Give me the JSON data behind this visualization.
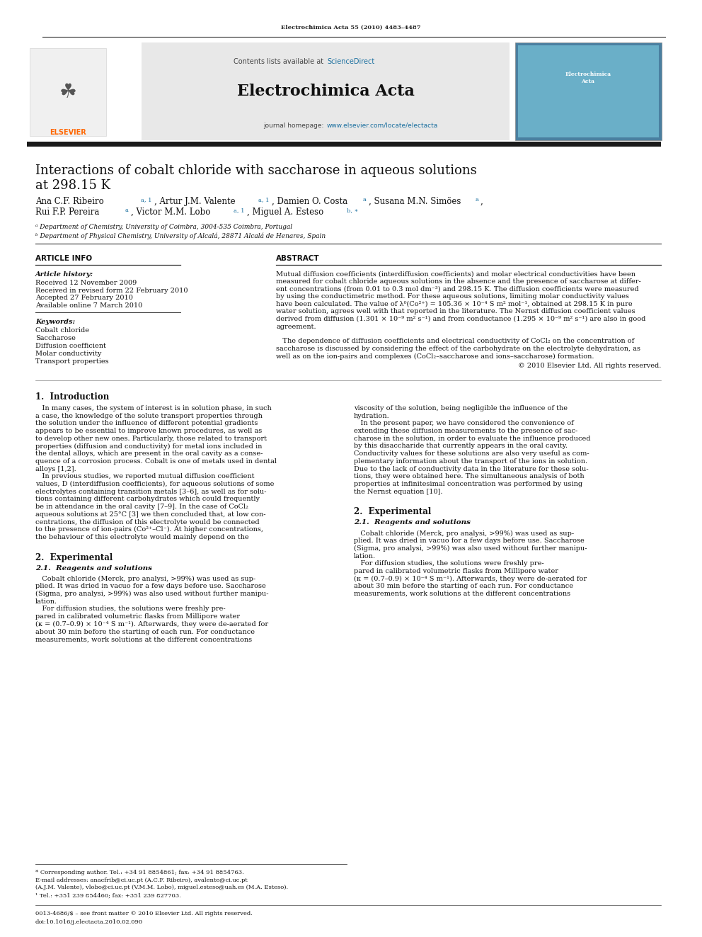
{
  "page_width": 9.92,
  "page_height": 13.23,
  "background": "#ffffff",
  "top_journal_ref": "Electrochimica Acta 55 (2010) 4483–4487",
  "journal_name": "Electrochimica Acta",
  "contents_text": "Contents lists available at ",
  "sciencedirect_text": "ScienceDirect",
  "journal_homepage_plain": "journal homepage: ",
  "journal_homepage_url": "www.elsevier.com/locate/electacta",
  "sciencedirect_color": "#1a6f9f",
  "homepage_color": "#1a6f9f",
  "elsevier_color": "#ff6600",
  "article_title_line1": "Interactions of cobalt chloride with saccharose in aqueous solutions",
  "article_title_line2": "at 298.15 K",
  "affil_a": "ᵃ Department of Chemistry, University of Coimbra, 3004-535 Coimbra, Portugal",
  "affil_b": "ᵇ Department of Physical Chemistry, University of Alcalá, 28871 Alcalá de Henares, Spain",
  "article_info_title": "ARTICLE INFO",
  "abstract_title": "ABSTRACT",
  "article_history_label": "Article history:",
  "received": "Received 12 November 2009",
  "revised": "Received in revised form 22 February 2010",
  "accepted": "Accepted 27 February 2010",
  "available": "Available online 7 March 2010",
  "keywords_label": "Keywords:",
  "keywords": [
    "Cobalt chloride",
    "Saccharose",
    "Diffusion coefficient",
    "Molar conductivity",
    "Transport properties"
  ],
  "section1_title": "1.  Introduction",
  "section2_title": "2.  Experimental",
  "section21_title": "2.1.  Reagents and solutions",
  "footnote_star": "* Corresponding author. Tel.: +34 91 8854861; fax: +34 91 8854763.",
  "footnote_email1": "E-mail addresses: anacfrib@ci.uc.pt (A.C.F. Ribeiro), avalente@ci.uc.pt",
  "footnote_email2": "(A.J.M. Valente), vlobo@ci.uc.pt (V.M.M. Lobo), miguel.esteso@uah.es (M.A. Esteso).",
  "footnote_1": "¹ Tel.: +351 239 854460; fax: +351 239 827703.",
  "footer_issn": "0013-4686/$ – see front matter © 2010 Elsevier Ltd. All rights reserved.",
  "footer_doi": "doi:10.1016/j.electacta.2010.02.090",
  "header_bg": "#e8e8e8",
  "thick_rule_color": "#1a1a1a",
  "elsevier_logo_color": "#ff6600"
}
